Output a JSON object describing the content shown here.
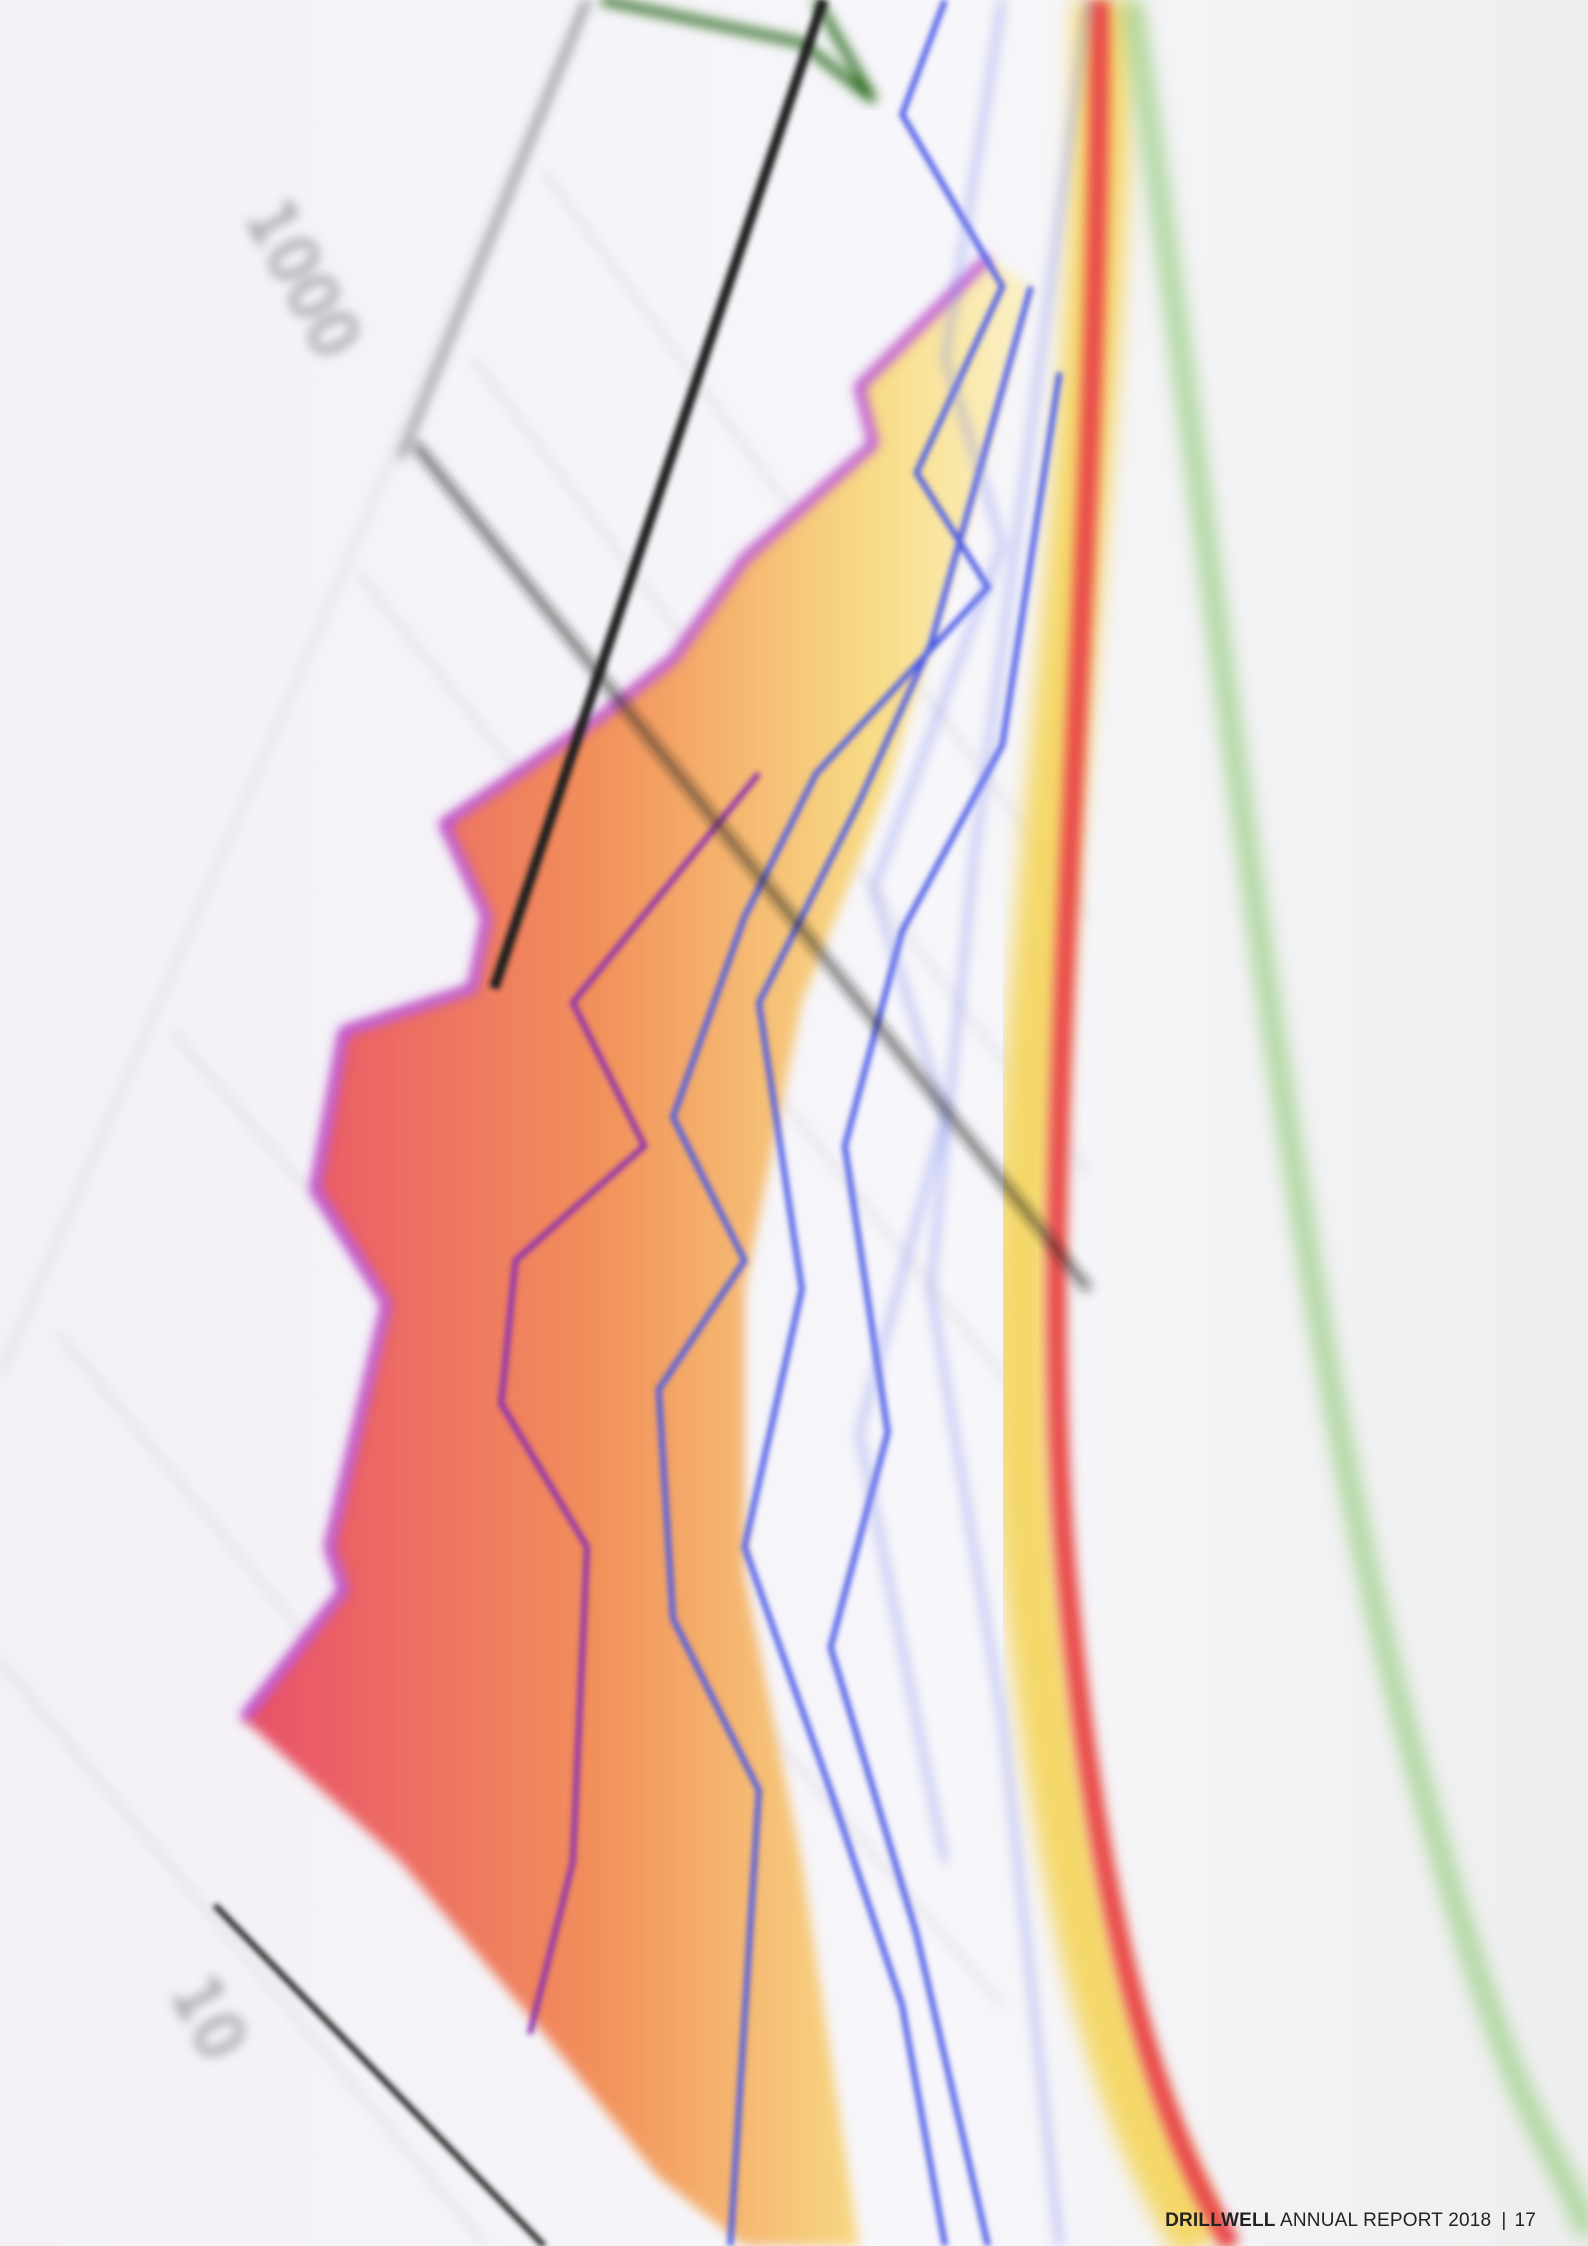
{
  "photo": {
    "labels": [
      "1000",
      "10"
    ]
  },
  "footer": {
    "brand": "DRILLWELL",
    "title": "ANNUAL REPORT 2018",
    "separator": "|",
    "page_number": "17"
  }
}
